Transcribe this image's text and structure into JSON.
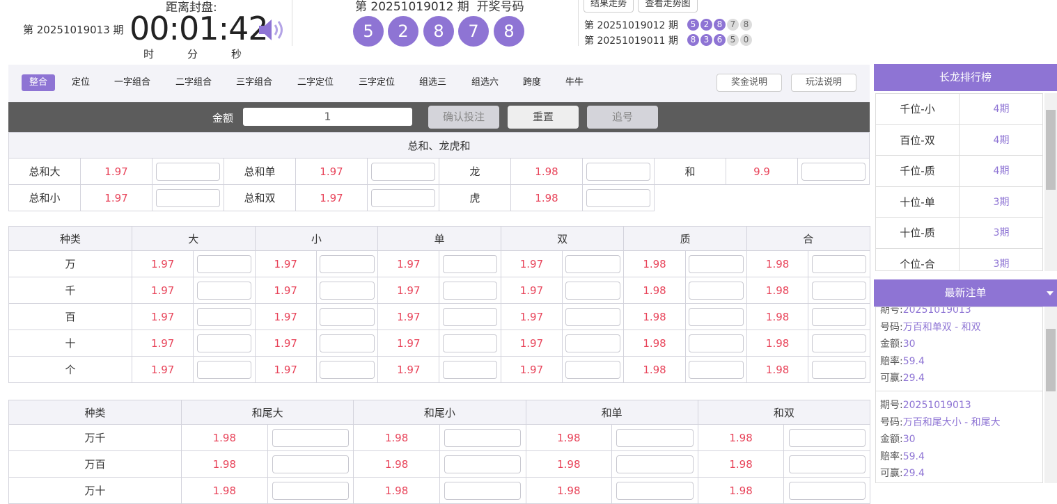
{
  "header": {
    "current_period": "第 20251019013 期",
    "countdown_label": "距离封盘:",
    "countdown": "00:01:42",
    "time_units": [
      "时",
      "分",
      "秒"
    ],
    "last_draw_title": "第 20251019012 期  开奖号码",
    "last_draw_numbers": [
      5,
      2,
      8,
      7,
      8
    ],
    "buttons": [
      "结果走势",
      "查看走势图"
    ],
    "history": [
      {
        "period": "第 20251019012 期",
        "numbers": [
          5,
          2,
          8,
          7,
          8
        ]
      },
      {
        "period": "第 20251019011 期",
        "numbers": [
          8,
          3,
          6,
          5,
          0
        ]
      }
    ]
  },
  "tabs": {
    "items": [
      "整合",
      "定位",
      "一字组合",
      "二字组合",
      "三字组合",
      "二字定位",
      "三字定位",
      "组选三",
      "组选六",
      "跨度",
      "牛牛"
    ],
    "active": "整合",
    "buttons": [
      "奖金说明",
      "玩法说明"
    ]
  },
  "bet_bar": {
    "amount_label": "金额",
    "amount": "1",
    "buttons": [
      "确认投注",
      "重置",
      "追号"
    ]
  },
  "sum_table": {
    "title": "总和、龙虎和",
    "rows": [
      [
        [
          "总和大",
          "1.97"
        ],
        [
          "总和单",
          "1.97"
        ],
        [
          "龙",
          "1.98"
        ],
        [
          "和",
          "9.9"
        ]
      ],
      [
        [
          "总和小",
          "1.97"
        ],
        [
          "总和双",
          "1.97"
        ],
        [
          "虎",
          "1.98"
        ]
      ]
    ]
  },
  "digit_table": {
    "headers": [
      "种类",
      "大",
      "小",
      "单",
      "双",
      "质",
      "合"
    ],
    "rows": [
      [
        "万",
        "1.97",
        "1.97",
        "1.97",
        "1.97",
        "1.98",
        "1.98"
      ],
      [
        "千",
        "1.97",
        "1.97",
        "1.97",
        "1.97",
        "1.98",
        "1.98"
      ],
      [
        "百",
        "1.97",
        "1.97",
        "1.97",
        "1.97",
        "1.98",
        "1.98"
      ],
      [
        "十",
        "1.97",
        "1.97",
        "1.97",
        "1.97",
        "1.98",
        "1.98"
      ],
      [
        "个",
        "1.97",
        "1.97",
        "1.97",
        "1.97",
        "1.98",
        "1.98"
      ]
    ]
  },
  "pair_table": {
    "headers": [
      "种类",
      "和尾大",
      "和尾小",
      "和单",
      "和双"
    ],
    "rows": [
      [
        "万千",
        "1.98",
        "1.98",
        "1.98",
        "1.98"
      ],
      [
        "万百",
        "1.98",
        "1.98",
        "1.98",
        "1.98"
      ],
      [
        "万十",
        "1.98",
        "1.98",
        "1.98",
        "1.98"
      ]
    ]
  },
  "ranking": {
    "title": "长龙排行榜",
    "items": [
      [
        "千位-小",
        "4期"
      ],
      [
        "百位-双",
        "4期"
      ],
      [
        "千位-质",
        "4期"
      ],
      [
        "十位-单",
        "3期"
      ],
      [
        "十位-质",
        "3期"
      ],
      [
        "个位-合",
        "3期"
      ]
    ]
  },
  "latest_orders": {
    "title": "最新注单",
    "labels": [
      "期号:",
      "号码:",
      "金额:",
      "赔率:",
      "可赢:"
    ],
    "orders": [
      [
        "20251019013",
        "万百和单双 - 和双",
        "30",
        "59.4",
        "29.4"
      ],
      [
        "20251019013",
        "万百和尾大小 - 和尾大",
        "30",
        "59.4",
        "29.4"
      ]
    ]
  }
}
